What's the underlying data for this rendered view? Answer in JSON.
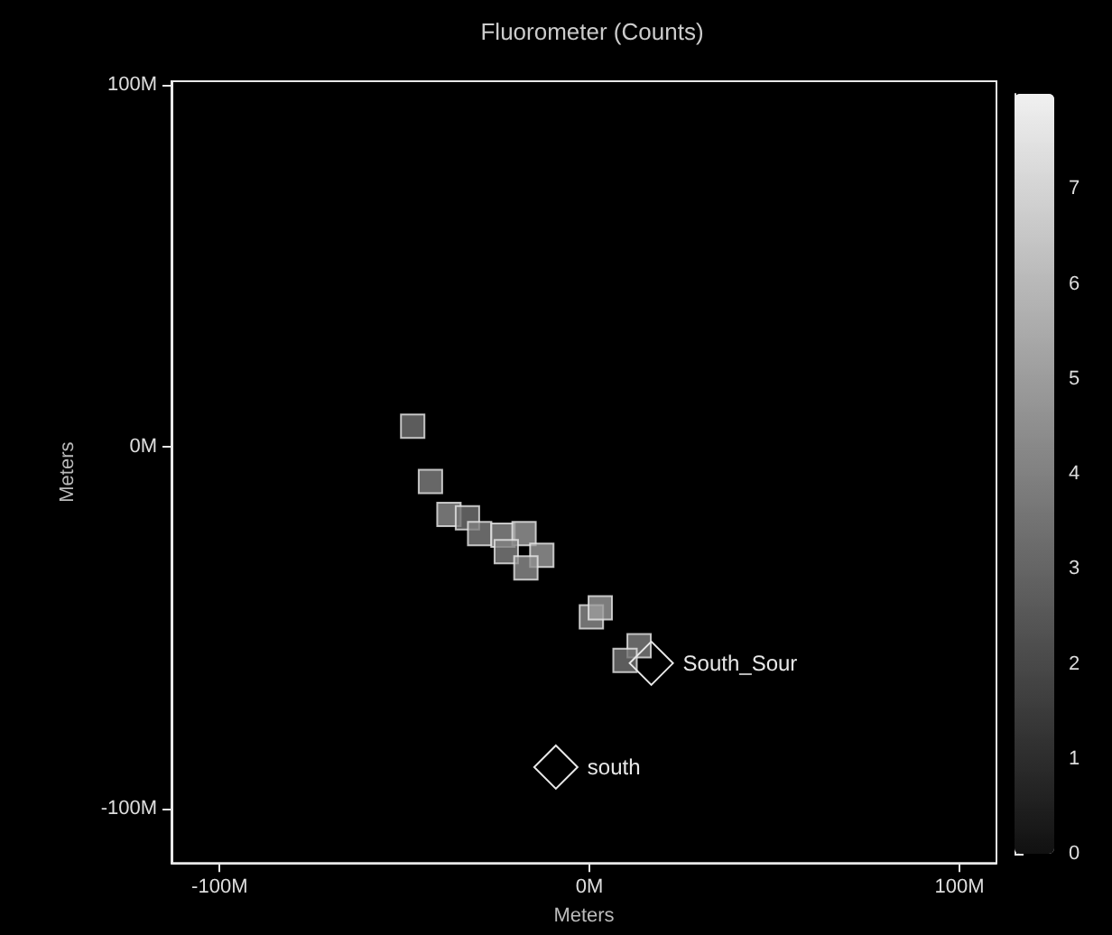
{
  "chart_data": {
    "type": "scatter",
    "title": "Fluorometer (Counts)",
    "xlabel": "Meters",
    "ylabel": "Meters",
    "x": [
      -47.8,
      -43,
      -38,
      -33,
      -29.7,
      -23.4,
      -17.7,
      -22.5,
      -12.9,
      -17.2,
      0.5,
      2.9,
      13.4,
      9.6
    ],
    "values": [
      5.7,
      -9.6,
      -18.7,
      -19.6,
      -24,
      -24.4,
      -24,
      -29,
      -30,
      -33.5,
      -47,
      -44.5,
      -55,
      -59
    ],
    "cvalues": [
      3.5,
      4,
      4.5,
      3.5,
      4,
      4.5,
      5,
      4,
      5,
      4.5,
      4.5,
      5,
      4,
      3.5
    ],
    "marker": "square",
    "clim": [
      0,
      8
    ],
    "cticks": [
      0,
      1,
      2,
      3,
      4,
      5,
      6,
      7
    ],
    "xlim": [
      -113,
      110
    ],
    "ylim": [
      -115,
      101
    ],
    "xticks": [
      {
        "value": -100,
        "label": "-100M"
      },
      {
        "value": 0,
        "label": "0M"
      },
      {
        "value": 100,
        "label": "100M"
      }
    ],
    "yticks": [
      {
        "value": -100,
        "label": "-100M"
      },
      {
        "value": 0,
        "label": "0M"
      },
      {
        "value": 100,
        "label": "100M"
      }
    ],
    "annotations": [
      {
        "text": "South_Sour",
        "x": 16.7,
        "y": -59.8
      },
      {
        "text": "south",
        "x": -9.1,
        "y": -88.5
      }
    ]
  }
}
